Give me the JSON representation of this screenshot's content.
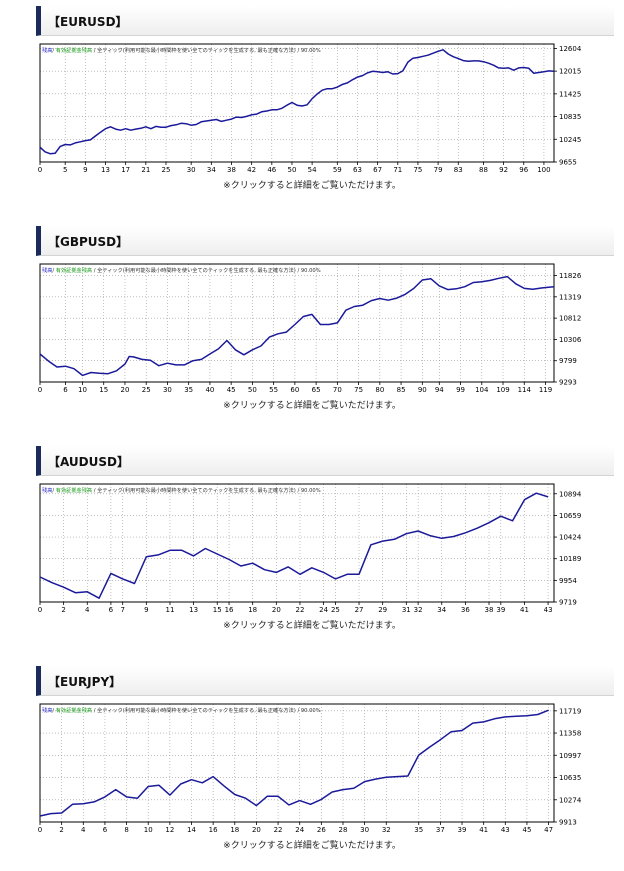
{
  "charts": [
    {
      "header": "【EURUSD】",
      "note": "※クリックすると詳細をご覧いただけます。",
      "chart_data": {
        "type": "line",
        "title": "",
        "legend": [
          {
            "text": "残高",
            "color": "#2424c8"
          },
          {
            "text": "/ ",
            "color": "#333333"
          },
          {
            "text": "有効証拠金残高",
            "color": "#1a9a1a"
          },
          {
            "text": " / 全ティック(利用可能な最小時間枠を使い全てのティックを生成する, 最も正確な方法) / 90.00%",
            "color": "#333333"
          }
        ],
        "legend_position": "top-left",
        "grid": true,
        "xlim": [
          0,
          102
        ],
        "ylim": [
          9655,
          12720
        ],
        "x_ticks": [
          "0",
          "5",
          "9",
          "13",
          "17",
          "21",
          "25",
          "30",
          "34",
          "38",
          "42",
          "46",
          "50",
          "54",
          "59",
          "63",
          "67",
          "71",
          "75",
          "79",
          "83",
          "88",
          "92",
          "96",
          "100"
        ],
        "x_tick_values": [
          0,
          5,
          9,
          13,
          17,
          21,
          25,
          30,
          34,
          38,
          42,
          46,
          50,
          54,
          59,
          63,
          67,
          71,
          75,
          79,
          83,
          88,
          92,
          96,
          100
        ],
        "y_ticks": [
          "9655",
          "10245",
          "10835",
          "11425",
          "12015",
          "12604"
        ],
        "y_tick_values": [
          9655,
          10245,
          10835,
          11425,
          12015,
          12604
        ],
        "series": [
          {
            "color": "#1a1a9a",
            "x": [
              0,
              1,
              2,
              3,
              4,
              5,
              6,
              7,
              8,
              9,
              10,
              11,
              12,
              13,
              14,
              15,
              16,
              17,
              18,
              19,
              20,
              21,
              22,
              23,
              24,
              25,
              26,
              27,
              28,
              29,
              30,
              31,
              32,
              33,
              34,
              35,
              36,
              37,
              38,
              39,
              40,
              41,
              42,
              43,
              44,
              45,
              46,
              47,
              48,
              49,
              50,
              51,
              52,
              53,
              54,
              55,
              56,
              57,
              58,
              59,
              60,
              61,
              62,
              63,
              64,
              65,
              66,
              67,
              68,
              69,
              70,
              71,
              72,
              73,
              74,
              75,
              76,
              77,
              78,
              79,
              80,
              81,
              82,
              83,
              84,
              85,
              86,
              87,
              88,
              89,
              90,
              91,
              92,
              93,
              94,
              95,
              96,
              97,
              98,
              99,
              100,
              101,
              102
            ],
            "values": [
              10040,
              9920,
              9870,
              9880,
              10060,
              10110,
              10100,
              10150,
              10180,
              10210,
              10230,
              10330,
              10430,
              10520,
              10570,
              10510,
              10480,
              10520,
              10480,
              10510,
              10530,
              10570,
              10520,
              10580,
              10560,
              10560,
              10600,
              10620,
              10660,
              10650,
              10610,
              10630,
              10700,
              10720,
              10740,
              10760,
              10710,
              10740,
              10770,
              10820,
              10810,
              10840,
              10880,
              10900,
              10960,
              10980,
              11010,
              11010,
              11050,
              11130,
              11200,
              11130,
              11110,
              11140,
              11300,
              11420,
              11520,
              11560,
              11560,
              11600,
              11670,
              11710,
              11790,
              11860,
              11900,
              11970,
              12010,
              12000,
              11980,
              12000,
              11940,
              11950,
              12020,
              12250,
              12350,
              12370,
              12400,
              12430,
              12480,
              12530,
              12570,
              12460,
              12390,
              12340,
              12290,
              12270,
              12280,
              12280,
              12260,
              12220,
              12170,
              12100,
              12090,
              12100,
              12040,
              12100,
              12110,
              12090,
              11960,
              11980,
              12000,
              12020,
              12010
            ]
          }
        ]
      }
    },
    {
      "header": "【GBPUSD】",
      "note": "※クリックすると詳細をご覧いただけます。",
      "chart_data": {
        "type": "line",
        "title": "",
        "legend": [
          {
            "text": "残高",
            "color": "#2424c8"
          },
          {
            "text": "/ ",
            "color": "#333333"
          },
          {
            "text": "有効証拠金残高",
            "color": "#1a9a1a"
          },
          {
            "text": " / 全ティック(利用可能な最小時間枠を使い全てのティックを生成する, 最も正確な方法) / 90.00%",
            "color": "#333333"
          }
        ],
        "legend_position": "top-left",
        "grid": true,
        "xlim": [
          0,
          121
        ],
        "ylim": [
          9293,
          12100
        ],
        "x_ticks": [
          "0",
          "6",
          "10",
          "15",
          "20",
          "25",
          "30",
          "35",
          "40",
          "45",
          "50",
          "55",
          "60",
          "65",
          "70",
          "75",
          "80",
          "85",
          "90",
          "94",
          "99",
          "104",
          "109",
          "114",
          "119"
        ],
        "x_tick_values": [
          0,
          6,
          10,
          15,
          20,
          25,
          30,
          35,
          40,
          45,
          50,
          55,
          60,
          65,
          70,
          75,
          80,
          85,
          90,
          94,
          99,
          104,
          109,
          114,
          119
        ],
        "y_ticks": [
          "9293",
          "9799",
          "10306",
          "10812",
          "11319",
          "11826"
        ],
        "y_tick_values": [
          9293,
          9799,
          10306,
          10812,
          11319,
          11826
        ],
        "series": [
          {
            "color": "#1a1a9a",
            "x": [
              0,
              2,
              4,
              6,
              8,
              10,
              12,
              14,
              16,
              18,
              20,
              21,
              22,
              24,
              26,
              28,
              30,
              32,
              34,
              36,
              38,
              40,
              42,
              44,
              46,
              48,
              50,
              52,
              54,
              56,
              58,
              60,
              62,
              64,
              66,
              68,
              70,
              72,
              74,
              76,
              78,
              80,
              82,
              84,
              86,
              88,
              90,
              92,
              94,
              96,
              98,
              100,
              102,
              104,
              106,
              108,
              110,
              112,
              114,
              116,
              118,
              120,
              121
            ],
            "values": [
              9960,
              9790,
              9650,
              9670,
              9610,
              9450,
              9520,
              9500,
              9490,
              9560,
              9720,
              9900,
              9890,
              9830,
              9810,
              9680,
              9740,
              9700,
              9700,
              9800,
              9830,
              9960,
              10080,
              10280,
              10060,
              9940,
              10060,
              10150,
              10360,
              10440,
              10480,
              10660,
              10850,
              10900,
              10660,
              10660,
              10700,
              11000,
              11090,
              11120,
              11230,
              11280,
              11240,
              11290,
              11380,
              11520,
              11720,
              11750,
              11580,
              11490,
              11510,
              11560,
              11660,
              11680,
              11710,
              11760,
              11800,
              11630,
              11520,
              11500,
              11530,
              11550,
              11560
            ]
          }
        ]
      }
    },
    {
      "header": "【AUDUSD】",
      "note": "※クリックすると詳細をご覧いただけます。",
      "chart_data": {
        "type": "line",
        "title": "",
        "legend": [
          {
            "text": "残高",
            "color": "#2424c8"
          },
          {
            "text": "/ ",
            "color": "#333333"
          },
          {
            "text": "有効証拠金残高",
            "color": "#1a9a1a"
          },
          {
            "text": " / 全ティック(利用可能な最小時間枠を使い全てのティックを生成する, 最も正確な方法) / 90.00%",
            "color": "#333333"
          }
        ],
        "legend_position": "top-left",
        "grid": true,
        "xlim": [
          0,
          43.5
        ],
        "ylim": [
          9719,
          11000
        ],
        "x_ticks": [
          "0",
          "2",
          "4",
          "6",
          "7",
          "9",
          "11",
          "13",
          "15",
          "16",
          "18",
          "20",
          "22",
          "24",
          "25",
          "27",
          "29",
          "31",
          "32",
          "34",
          "36",
          "38",
          "39",
          "41",
          "43"
        ],
        "x_tick_values": [
          0,
          2,
          4,
          6,
          7,
          9,
          11,
          13,
          15,
          16,
          18,
          20,
          22,
          24,
          25,
          27,
          29,
          31,
          32,
          34,
          36,
          38,
          39,
          41,
          43
        ],
        "y_ticks": [
          "9719",
          "9954",
          "10189",
          "10424",
          "10659",
          "10894"
        ],
        "y_tick_values": [
          9719,
          9954,
          10189,
          10424,
          10659,
          10894
        ],
        "series": [
          {
            "color": "#1a1a9a",
            "x": [
              0,
              1,
              2,
              3,
              4,
              5,
              6,
              7,
              8,
              9,
              10,
              11,
              12,
              13,
              14,
              15,
              16,
              17,
              18,
              19,
              20,
              21,
              22,
              23,
              24,
              25,
              26,
              27,
              28,
              29,
              30,
              31,
              32,
              33,
              34,
              35,
              36,
              37,
              38,
              39,
              40,
              41,
              42,
              43
            ],
            "values": [
              9990,
              9930,
              9880,
              9820,
              9830,
              9760,
              10030,
              9970,
              9920,
              10210,
              10230,
              10280,
              10280,
              10220,
              10300,
              10240,
              10180,
              10110,
              10140,
              10070,
              10040,
              10100,
              10020,
              10090,
              10040,
              9970,
              10020,
              10020,
              10340,
              10380,
              10400,
              10460,
              10490,
              10440,
              10410,
              10430,
              10470,
              10520,
              10580,
              10650,
              10600,
              10830,
              10900,
              10860
            ]
          }
        ]
      }
    },
    {
      "header": "【EURJPY】",
      "note": "※クリックすると詳細をご覧いただけます。",
      "chart_data": {
        "type": "line",
        "title": "",
        "legend": [
          {
            "text": "残高",
            "color": "#2424c8"
          },
          {
            "text": "/ ",
            "color": "#333333"
          },
          {
            "text": "有効証拠金残高",
            "color": "#1a9a1a"
          },
          {
            "text": " / 全ティック(利用可能な最小時間枠を使い全てのティックを生成する, 最も正確な方法) / 90.00%",
            "color": "#333333"
          }
        ],
        "legend_position": "top-left",
        "grid": true,
        "xlim": [
          0,
          47.5
        ],
        "ylim": [
          9913,
          11830
        ],
        "x_ticks": [
          "0",
          "2",
          "4",
          "6",
          "8",
          "10",
          "12",
          "14",
          "16",
          "18",
          "20",
          "22",
          "24",
          "26",
          "28",
          "30",
          "32",
          "35",
          "37",
          "39",
          "41",
          "43",
          "45",
          "47"
        ],
        "x_tick_values": [
          0,
          2,
          4,
          6,
          8,
          10,
          12,
          14,
          16,
          18,
          20,
          22,
          24,
          26,
          28,
          30,
          32,
          35,
          37,
          39,
          41,
          43,
          45,
          47
        ],
        "y_ticks": [
          "9913",
          "10274",
          "10635",
          "10997",
          "11358",
          "11719"
        ],
        "y_tick_values": [
          9913,
          10274,
          10635,
          10997,
          11358,
          11719
        ],
        "series": [
          {
            "color": "#1a1a9a",
            "x": [
              0,
              1,
              2,
              3,
              4,
              5,
              6,
              7,
              8,
              9,
              10,
              11,
              12,
              13,
              14,
              15,
              16,
              17,
              18,
              19,
              20,
              21,
              22,
              23,
              24,
              25,
              26,
              27,
              28,
              29,
              30,
              31,
              32,
              33,
              34,
              35,
              36,
              37,
              38,
              39,
              40,
              41,
              42,
              43,
              44,
              45,
              46,
              47
            ],
            "values": [
              10010,
              10050,
              10060,
              10200,
              10210,
              10240,
              10320,
              10440,
              10320,
              10300,
              10490,
              10510,
              10350,
              10530,
              10600,
              10550,
              10650,
              10500,
              10360,
              10300,
              10180,
              10330,
              10330,
              10190,
              10260,
              10200,
              10280,
              10400,
              10440,
              10460,
              10570,
              10610,
              10640,
              10650,
              10660,
              11000,
              11130,
              11250,
              11380,
              11400,
              11520,
              11540,
              11590,
              11620,
              11630,
              11640,
              11660,
              11730
            ]
          }
        ]
      }
    }
  ]
}
